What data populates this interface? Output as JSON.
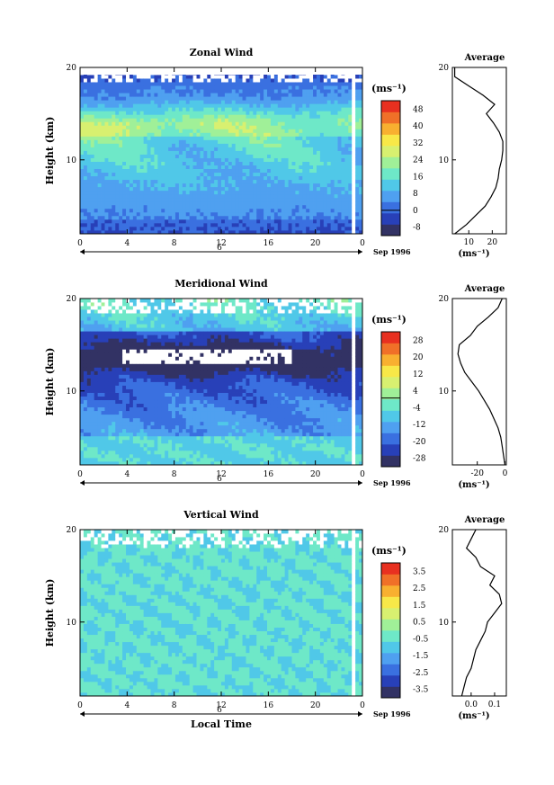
{
  "chart_data": [
    {
      "type": "heatmap",
      "title": "Zonal Wind",
      "ylabel": "Height (km)",
      "xlim": [
        0,
        24
      ],
      "ylim": [
        2,
        20
      ],
      "x_ticks": [
        "0",
        "4",
        "8",
        "12",
        "16",
        "20",
        "0"
      ],
      "y_ticks": [
        "10",
        "20"
      ],
      "date_marker": "6",
      "date_label": "Sep 1996",
      "colorbar_unit": "(ms⁻¹)",
      "colorbar_levels": [
        "48",
        "40",
        "32",
        "24",
        "16",
        "8",
        "0",
        "-8"
      ],
      "colors": [
        "#323264",
        "#2840b8",
        "#3a70e0",
        "#4fa0f0",
        "#50c8e8",
        "#6ee8c8",
        "#a0f098",
        "#d8f070",
        "#f8e848",
        "#f8b030",
        "#f07028",
        "#e83020"
      ],
      "profile": {
        "title": "Average",
        "xlabel": "(ms⁻¹)",
        "x_ticks": [
          "10",
          "20"
        ],
        "y_ticks": [
          "10",
          "20"
        ],
        "xlim": [
          3,
          26
        ],
        "height": [
          2.0,
          3.0,
          4.0,
          5.0,
          6.0,
          7.0,
          8.0,
          9.0,
          10.0,
          11.0,
          12.0,
          13.0,
          14.0,
          15.0,
          16.0,
          17.0,
          18.0,
          19.0,
          20.0
        ],
        "value": [
          4,
          9,
          13,
          17,
          19.5,
          21.5,
          22.5,
          23,
          24,
          24.5,
          24.5,
          23,
          20.5,
          17.5,
          21,
          16,
          10,
          4,
          4
        ]
      }
    },
    {
      "type": "heatmap",
      "title": "Meridional Wind",
      "ylabel": "Height (km)",
      "xlim": [
        0,
        24
      ],
      "ylim": [
        2,
        20
      ],
      "x_ticks": [
        "0",
        "4",
        "8",
        "12",
        "16",
        "20",
        "0"
      ],
      "y_ticks": [
        "10",
        "20"
      ],
      "date_marker": "6",
      "date_label": "Sep 1996",
      "colorbar_unit": "(ms⁻¹)",
      "colorbar_levels": [
        "28",
        "20",
        "12",
        "4",
        "-4",
        "-12",
        "-20",
        "-28"
      ],
      "colors": [
        "#323264",
        "#2840b8",
        "#3a70e0",
        "#4fa0f0",
        "#50c8e8",
        "#6ee8c8",
        "#a0f098",
        "#d8f070",
        "#f8e848",
        "#f8b030",
        "#f07028",
        "#e83020"
      ],
      "profile": {
        "title": "Average",
        "xlabel": "(ms⁻¹)",
        "x_ticks": [
          "-20",
          "0"
        ],
        "y_ticks": [
          "10",
          "20"
        ],
        "xlim": [
          -38,
          1
        ],
        "height": [
          2.0,
          3.0,
          4.0,
          5.0,
          6.0,
          7.0,
          8.0,
          9.0,
          10.0,
          11.0,
          12.0,
          13.0,
          14.0,
          15.0,
          16.0,
          17.0,
          18.0,
          19.0,
          20.0
        ],
        "value": [
          0,
          -1,
          -2,
          -3,
          -5,
          -8,
          -11,
          -15,
          -19,
          -24,
          -29,
          -32,
          -34,
          -33,
          -25,
          -20,
          -12,
          -5,
          -2
        ]
      }
    },
    {
      "type": "heatmap",
      "title": "Vertical Wind",
      "ylabel": "Height (km)",
      "xlabel": "Local Time",
      "xlim": [
        0,
        24
      ],
      "ylim": [
        2,
        20
      ],
      "x_ticks": [
        "0",
        "4",
        "8",
        "12",
        "16",
        "20",
        "0"
      ],
      "y_ticks": [
        "10",
        "20"
      ],
      "date_marker": "6",
      "date_label": "Sep 1996",
      "colorbar_unit": "(ms⁻¹)",
      "colorbar_levels": [
        "3.5",
        "2.5",
        "1.5",
        "0.5",
        "-0.5",
        "-1.5",
        "-2.5",
        "-3.5"
      ],
      "colors": [
        "#323264",
        "#2840b8",
        "#3a70e0",
        "#4fa0f0",
        "#50c8e8",
        "#6ee8c8",
        "#a0f098",
        "#d8f070",
        "#f8e848",
        "#f8b030",
        "#f07028",
        "#e83020"
      ],
      "profile": {
        "title": "Average",
        "xlabel": "(ms⁻¹)",
        "x_ticks": [
          "0.0",
          "0.1"
        ],
        "y_ticks": [
          "10",
          "20"
        ],
        "xlim": [
          -0.08,
          0.15
        ],
        "height": [
          2.0,
          3.0,
          4.0,
          5.0,
          6.0,
          7.0,
          8.0,
          9.0,
          10.0,
          11.0,
          12.0,
          13.0,
          14.0,
          15.0,
          16.0,
          17.0,
          18.0,
          19.0,
          20.0
        ],
        "value": [
          -0.04,
          -0.03,
          -0.02,
          0.0,
          0.01,
          0.02,
          0.04,
          0.06,
          0.07,
          0.1,
          0.13,
          0.12,
          0.08,
          0.1,
          0.04,
          0.02,
          -0.02,
          0.0,
          0.02
        ]
      }
    }
  ]
}
